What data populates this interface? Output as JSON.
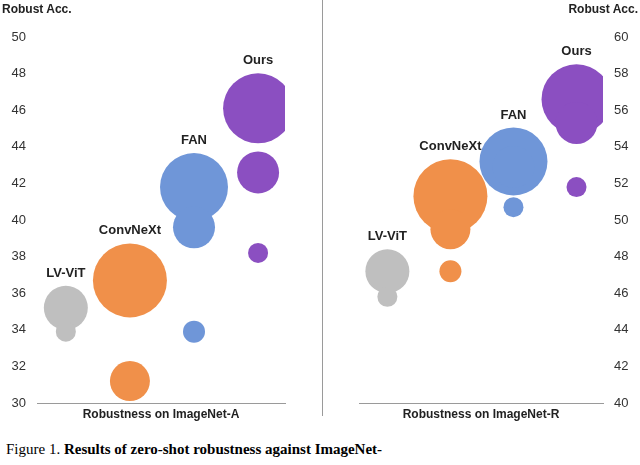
{
  "chart_data": [
    {
      "type": "bubble",
      "x_title": "Robustness on ImageNet-A",
      "y_title": "Robust Acc.",
      "ylim": [
        30,
        50
      ],
      "yticks": [
        30,
        32,
        34,
        36,
        38,
        40,
        42,
        44,
        46,
        48,
        50
      ],
      "grid": false,
      "tick_labels": "y",
      "series": [
        {
          "name": "LV-ViT",
          "color": "#bfbfbf",
          "values": [
            35.2,
            33.9
          ],
          "sizes": [
            22,
            10
          ]
        },
        {
          "name": "ConvNeXt",
          "color": "#f0904a",
          "values": [
            36.7,
            31.2
          ],
          "sizes": [
            37,
            20
          ]
        },
        {
          "name": "FAN",
          "color": "#6f96d8",
          "values": [
            41.8,
            39.6,
            33.9
          ],
          "sizes": [
            34,
            21,
            11
          ]
        },
        {
          "name": "Ours",
          "color": "#8b4fc1",
          "values": [
            46.1,
            42.6,
            38.2
          ],
          "sizes": [
            35,
            21,
            10
          ]
        }
      ]
    },
    {
      "type": "bubble",
      "x_title": "Robustness on ImageNet-R",
      "y_title": "Robust Acc.",
      "ylim": [
        40,
        60
      ],
      "yticks": [
        40,
        42,
        44,
        46,
        48,
        50,
        52,
        54,
        56,
        58,
        60
      ],
      "grid": false,
      "tick_labels": "y",
      "series": [
        {
          "name": "LV-ViT",
          "color": "#bfbfbf",
          "values": [
            47.2,
            45.8
          ],
          "sizes": [
            22,
            10
          ]
        },
        {
          "name": "ConvNeXt",
          "color": "#f0904a",
          "values": [
            51.3,
            49.5,
            47.2
          ],
          "sizes": [
            37,
            20,
            11
          ]
        },
        {
          "name": "FAN",
          "color": "#6f96d8",
          "values": [
            53.2,
            52.9,
            50.7
          ],
          "sizes": [
            34,
            21,
            10
          ]
        },
        {
          "name": "Ours",
          "color": "#8b4fc1",
          "values": [
            56.6,
            55.3,
            51.8
          ],
          "sizes": [
            35,
            21,
            10
          ]
        }
      ]
    }
  ],
  "caption_label": "Figure 1.",
  "caption": "Results of zero-shot robustness against ImageNet-"
}
